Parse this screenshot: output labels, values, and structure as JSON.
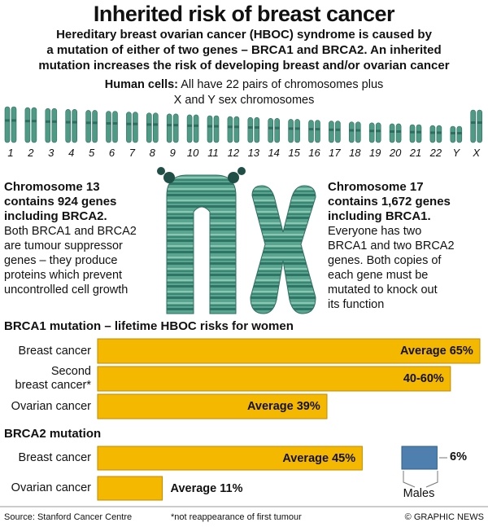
{
  "title": "Inherited risk of breast cancer",
  "subtitle_lines": [
    "Hereditary breast ovarian cancer (HBOC) syndrome is caused by",
    "a mutation of either of two genes – BRCA1 and BRCA2. An inherited",
    "mutation increases the risk of developing breast and/or ovarian cancer"
  ],
  "human_cells": {
    "label": "Human cells:",
    "lines": [
      "All have 22 pairs of chromosomes plus",
      "X and Y sex chromosomes"
    ]
  },
  "chromosome_labels": [
    "1",
    "2",
    "3",
    "4",
    "5",
    "6",
    "7",
    "8",
    "9",
    "10",
    "11",
    "12",
    "13",
    "14",
    "15",
    "16",
    "17",
    "18",
    "19",
    "20",
    "21",
    "22",
    "Y",
    "X"
  ],
  "chromosome_13": {
    "heading": [
      "Chromosome 13",
      "contains 924 genes",
      "including BRCA2."
    ],
    "text": [
      "Both BRCA1 and BRCA2",
      "are tumour suppressor",
      "genes – they produce",
      "proteins which prevent",
      "uncontrolled cell growth"
    ]
  },
  "chromosome_17": {
    "heading": [
      "Chromosome 17",
      "contains 1,672 genes",
      "including BRCA1."
    ],
    "text": [
      "Everyone has two",
      "BRCA1 and two BRCA2",
      "genes. Both copies of",
      "each gene must be",
      "mutated to knock out",
      "its function"
    ]
  },
  "chart_data": [
    {
      "type": "bar",
      "title": "BRCA1 mutation – lifetime HBOC risks for women",
      "categories": [
        "Breast cancer",
        "Second\nbreast cancer*",
        "Ovarian cancer"
      ],
      "values": [
        65,
        60,
        39
      ],
      "value_labels": [
        "Average 65%",
        "40-60%",
        "Average 39%"
      ],
      "color": "#f5b800",
      "xlim": [
        0,
        65
      ]
    },
    {
      "type": "bar",
      "title": "BRCA2 mutation",
      "categories": [
        "Breast cancer",
        "Ovarian cancer"
      ],
      "values": [
        45,
        11
      ],
      "value_labels": [
        "Average 45%",
        "Average 11%"
      ],
      "color": "#f5b800",
      "xlim": [
        0,
        65
      ],
      "males": {
        "name": "Males",
        "value": 6,
        "value_label": "6%",
        "color": "#4f7fae"
      }
    }
  ],
  "footer": {
    "source": "Source: Stanford Cancer Centre",
    "note": "*not reappearance of first tumour",
    "credit": "© GRAPHIC NEWS"
  }
}
